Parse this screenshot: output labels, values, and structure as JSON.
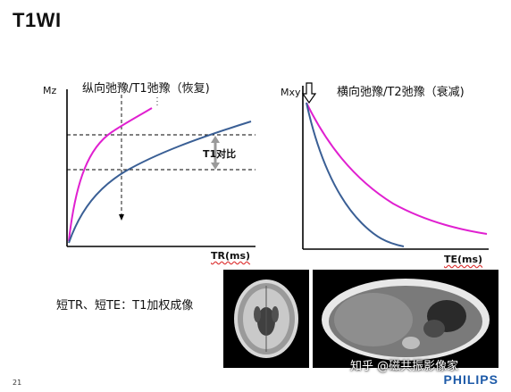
{
  "page": {
    "title": "T1WI",
    "page_number": "21",
    "caption": "短TR、短TE：T1加权成像",
    "watermark": "知乎 @磁共振影像家",
    "brand": "PHILIPS"
  },
  "left_graph": {
    "title": "纵向弛豫/T1弛豫（恢复)",
    "y_label": "Mz",
    "x_label": "TR(ms)",
    "contrast_label": "T1对比",
    "colors": {
      "axis": "#000000",
      "curve_fast": "#e020d0",
      "curve_slow": "#3a5f95",
      "dashed": "#000000",
      "arrow": "#9a9a9a"
    }
  },
  "right_graph": {
    "title": "横向弛豫/T2弛豫（衰减)",
    "y_label": "Mxy",
    "x_label": "TE(ms)",
    "colors": {
      "axis": "#000000",
      "curve_slow": "#e020d0",
      "curve_fast": "#3a5f95"
    }
  }
}
